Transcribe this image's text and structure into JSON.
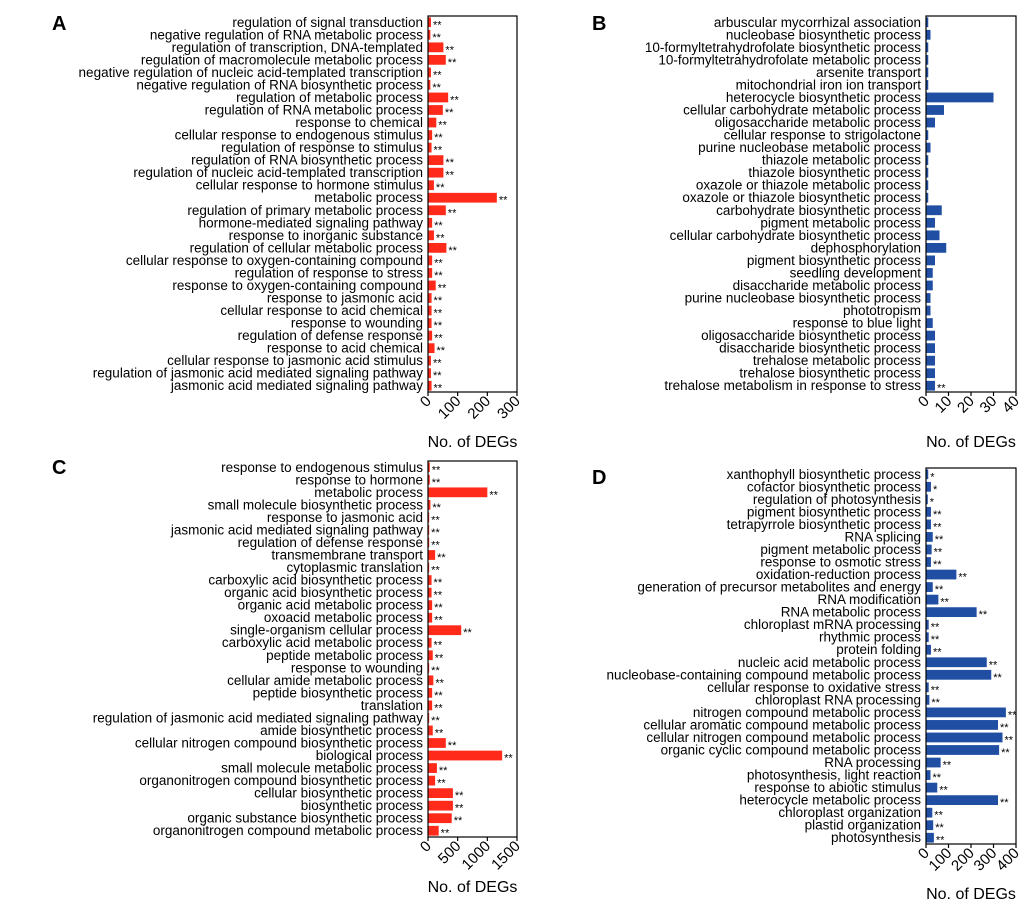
{
  "figure": {
    "colors": {
      "red": "#ff2a1a",
      "blue": "#1f4ea3",
      "axis": "#000000"
    }
  },
  "chart_data": [
    {
      "panel": "A",
      "type": "bar",
      "orientation": "horizontal",
      "color": "#ff2a1a",
      "xlabel": "No. of DEGs",
      "xlim": [
        0,
        300
      ],
      "ticks": [
        0,
        100,
        200,
        300
      ],
      "categories": [
        "regulation of signal transduction",
        "negative regulation of RNA metabolic process",
        "regulation of transcription, DNA-templated",
        "regulation of macromolecule metabolic process",
        "negative regulation of nucleic acid-templated transcription",
        "negative regulation of RNA biosynthetic process",
        "regulation of metabolic process",
        "regulation of RNA metabolic process",
        "response to chemical",
        "cellular response to endogenous stimulus",
        "regulation of response to stimulus",
        "regulation of RNA biosynthetic process",
        "regulation of nucleic acid-templated transcription",
        "cellular response to hormone stimulus",
        "metabolic process",
        "regulation of primary metabolic process",
        "hormone-mediated signaling pathway",
        "response to inorganic substance",
        "regulation of cellular metabolic process",
        "cellular response to oxygen-containing compound",
        "regulation of response to stress",
        "response to oxygen-containing compound",
        "response to jasmonic acid",
        "cellular response to acid chemical",
        "response to wounding",
        "regulation of defense response",
        "response to acid chemical",
        "cellular response to jasmonic acid stimulus",
        "regulation of jasmonic acid mediated signaling pathway",
        "jasmonic acid mediated signaling pathway"
      ],
      "values": [
        10,
        8,
        52,
        60,
        10,
        8,
        68,
        50,
        28,
        14,
        12,
        52,
        52,
        20,
        232,
        60,
        14,
        20,
        62,
        14,
        14,
        26,
        12,
        12,
        12,
        14,
        22,
        10,
        10,
        12
      ],
      "significance": [
        "**",
        "**",
        "**",
        "**",
        "**",
        "**",
        "**",
        "**",
        "**",
        "**",
        "**",
        "**",
        "**",
        "**",
        "**",
        "**",
        "**",
        "**",
        "**",
        "**",
        "**",
        "**",
        "**",
        "**",
        "**",
        "**",
        "**",
        "**",
        "**",
        "**"
      ]
    },
    {
      "panel": "B",
      "type": "bar",
      "orientation": "horizontal",
      "color": "#1f4ea3",
      "xlabel": "No. of DEGs",
      "xlim": [
        0,
        40
      ],
      "ticks": [
        0,
        10,
        20,
        30,
        40
      ],
      "categories": [
        "arbuscular mycorrhizal association",
        "nucleobase biosynthetic process",
        "10-formyltetrahydrofolate biosynthetic process",
        "10-formyltetrahydrofolate metabolic process",
        "arsenite transport",
        "mitochondrial iron ion transport",
        "heterocycle biosynthetic process",
        "cellular carbohydrate metabolic process",
        "oligosaccharide metabolic process",
        "cellular response to strigolactone",
        "purine nucleobase metabolic process",
        "thiazole metabolic process",
        "thiazole biosynthetic process",
        "oxazole or thiazole metabolic process",
        "oxazole or thiazole biosynthetic process",
        "carbohydrate biosynthetic process",
        "pigment metabolic process",
        "cellular carbohydrate biosynthetic process",
        "dephosphorylation",
        "pigment biosynthetic process",
        "seedling development",
        "disaccharide metabolic process",
        "purine nucleobase biosynthetic process",
        "phototropism",
        "response to blue light",
        "oligosaccharide biosynthetic process",
        "disaccharide biosynthetic process",
        "trehalose metabolic process",
        "trehalose biosynthetic process",
        "trehalose metabolism in response to stress"
      ],
      "values": [
        1,
        2,
        1,
        1,
        1,
        1,
        30,
        8,
        4,
        1,
        2,
        1,
        1,
        1,
        1,
        7,
        4,
        6,
        9,
        4,
        3,
        3,
        2,
        2,
        3,
        4,
        4,
        4,
        4,
        4
      ],
      "significance": [
        "",
        "",
        "",
        "",
        "",
        "",
        "",
        "",
        "",
        "",
        "",
        "",
        "",
        "",
        "",
        "",
        "",
        "",
        "",
        "",
        "",
        "",
        "",
        "",
        "",
        "",
        "",
        "",
        "",
        "**"
      ]
    },
    {
      "panel": "C",
      "type": "bar",
      "orientation": "horizontal",
      "color": "#ff2a1a",
      "xlabel": "No. of DEGs",
      "xlim": [
        0,
        1500
      ],
      "ticks": [
        0,
        500,
        1000,
        1500
      ],
      "categories": [
        "response to endogenous stimulus",
        "response to hormone",
        "metabolic process",
        "small molecule biosynthetic process",
        "response to jasmonic acid",
        "jasmonic acid mediated signaling pathway",
        "regulation of defense response",
        "transmembrane transport",
        "cytoplasmic translation",
        "carboxylic acid biosynthetic process",
        "organic acid biosynthetic process",
        "organic acid metabolic process",
        "oxoacid metabolic process",
        "single-organism cellular process",
        "carboxylic acid metabolic process",
        "peptide metabolic process",
        "response to wounding",
        "cellular amide metabolic process",
        "peptide biosynthetic process",
        "translation",
        "regulation of jasmonic acid mediated signaling pathway",
        "amide biosynthetic process",
        "cellular nitrogen compound biosynthetic process",
        "biological process",
        "small molecule metabolic process",
        "organonitrogen compound biosynthetic process",
        "cellular biosynthetic process",
        "biosynthetic process",
        "organic substance biosynthetic process",
        "organonitrogen compound metabolic process"
      ],
      "values": [
        30,
        30,
        1000,
        40,
        20,
        20,
        20,
        120,
        20,
        60,
        60,
        70,
        70,
        560,
        60,
        80,
        20,
        90,
        70,
        70,
        20,
        80,
        300,
        1250,
        150,
        120,
        420,
        420,
        400,
        180
      ],
      "significance": [
        "**",
        "**",
        "**",
        "**",
        "**",
        "**",
        "**",
        "**",
        "**",
        "**",
        "**",
        "**",
        "**",
        "**",
        "**",
        "**",
        "**",
        "**",
        "**",
        "**",
        "**",
        "**",
        "**",
        "**",
        "**",
        "**",
        "**",
        "**",
        "**",
        "**"
      ]
    },
    {
      "panel": "D",
      "type": "bar",
      "orientation": "horizontal",
      "color": "#1f4ea3",
      "xlabel": "No. of DEGs",
      "xlim": [
        0,
        400
      ],
      "ticks": [
        0,
        100,
        200,
        300,
        400
      ],
      "categories": [
        "xanthophyll biosynthetic process",
        "cofactor biosynthetic process",
        "regulation of photosynthesis",
        "pigment biosynthetic process",
        "tetrapyrrole biosynthetic process",
        "RNA splicing",
        "pigment metabolic process",
        "response to osmotic stress",
        "oxidation-reduction process",
        "generation of precursor metabolites and energy",
        "RNA modification",
        "RNA metabolic process",
        "chloroplast mRNA processing",
        "rhythmic process",
        "protein folding",
        "nucleic acid metabolic process",
        "nucleobase-containing compound metabolic process",
        "cellular response to oxidative stress",
        "chloroplast RNA processing",
        "nitrogen compound metabolic process",
        "cellular aromatic compound metabolic process",
        "cellular nitrogen compound metabolic process",
        "organic cyclic compound metabolic process",
        "RNA processing",
        "photosynthesis, light reaction",
        "response to abiotic stimulus",
        "heterocycle metabolic process",
        "chloroplast organization",
        "plastid organization",
        "photosynthesis"
      ],
      "values": [
        10,
        22,
        8,
        22,
        22,
        30,
        25,
        22,
        135,
        30,
        55,
        225,
        12,
        12,
        22,
        270,
        290,
        12,
        15,
        355,
        320,
        340,
        325,
        65,
        20,
        50,
        320,
        28,
        32,
        35
      ],
      "significance": [
        "*",
        "*",
        "*",
        "**",
        "**",
        "**",
        "**",
        "**",
        "**",
        "**",
        "**",
        "**",
        "**",
        "**",
        "**",
        "**",
        "**",
        "**",
        "**",
        "**",
        "**",
        "**",
        "**",
        "**",
        "**",
        "**",
        "**",
        "**",
        "**",
        "**"
      ]
    }
  ]
}
